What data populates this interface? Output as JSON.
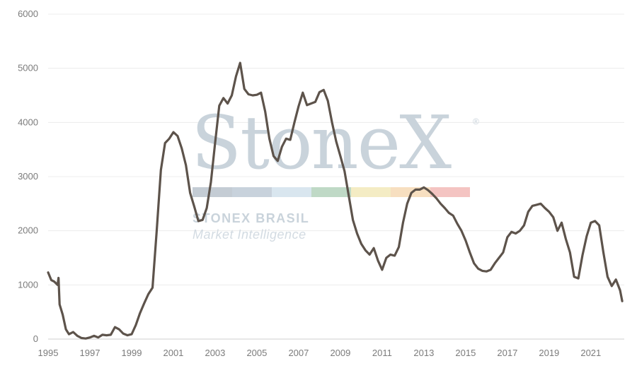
{
  "watermark": {
    "brand": "StoneX",
    "registered": "®",
    "subtitle": "STONEX BRASIL",
    "tagline": "Market Intelligence",
    "stripe_colors": [
      "#c4ccd4",
      "#c8d2dc",
      "#d9e6ef",
      "#bfd9c6",
      "#f4ecc4",
      "#f7dfc0",
      "#f4c4c2"
    ]
  },
  "chart_data": {
    "type": "line",
    "title": "",
    "xlabel": "",
    "ylabel": "",
    "xlim": [
      1995,
      2022.6
    ],
    "ylim": [
      0,
      6000
    ],
    "xticks": [
      "1995",
      "1997",
      "1999",
      "2001",
      "2003",
      "2005",
      "2007",
      "2009",
      "2011",
      "2013",
      "2015",
      "2017",
      "2019",
      "2021"
    ],
    "yticks": [
      "0",
      "1000",
      "2000",
      "3000",
      "4000",
      "5000",
      "6000"
    ],
    "grid": "horizontal",
    "legend": "none",
    "line_color": "#5d534b",
    "series": [
      {
        "x": [
          1995.0,
          1995.15,
          1995.3,
          1995.45,
          1995.5,
          1995.55,
          1995.7,
          1995.85,
          1996.0,
          1996.2,
          1996.4,
          1996.6,
          1996.8,
          1997.0,
          1997.2,
          1997.4,
          1997.6,
          1997.8,
          1998.0,
          1998.2,
          1998.4,
          1998.6,
          1998.8,
          1999.0,
          1999.2,
          1999.4,
          1999.6,
          1999.8,
          2000.0,
          2000.2,
          2000.4,
          2000.6,
          2000.8,
          2001.0,
          2001.2,
          2001.4,
          2001.6,
          2001.8,
          2002.0,
          2002.2,
          2002.4,
          2002.6,
          2002.8,
          2003.0,
          2003.2,
          2003.4,
          2003.6,
          2003.8,
          2004.0,
          2004.2,
          2004.4,
          2004.6,
          2004.8,
          2005.0,
          2005.2,
          2005.4,
          2005.6,
          2005.8,
          2006.0,
          2006.2,
          2006.4,
          2006.6,
          2006.8,
          2007.0,
          2007.2,
          2007.4,
          2007.6,
          2007.8,
          2008.0,
          2008.2,
          2008.4,
          2008.6,
          2008.8,
          2009.0,
          2009.2,
          2009.4,
          2009.6,
          2009.8,
          2010.0,
          2010.2,
          2010.4,
          2010.6,
          2010.8,
          2011.0,
          2011.2,
          2011.4,
          2011.6,
          2011.8,
          2012.0,
          2012.2,
          2012.4,
          2012.6,
          2012.8,
          2013.0,
          2013.2,
          2013.4,
          2013.6,
          2013.8,
          2014.0,
          2014.2,
          2014.4,
          2014.6,
          2014.8,
          2015.0,
          2015.2,
          2015.4,
          2015.6,
          2015.8,
          2016.0,
          2016.2,
          2016.4,
          2016.6,
          2016.8,
          2017.0,
          2017.2,
          2017.4,
          2017.6,
          2017.8,
          2018.0,
          2018.2,
          2018.4,
          2018.6,
          2018.8,
          2019.0,
          2019.2,
          2019.4,
          2019.6,
          2019.8,
          2020.0,
          2020.2,
          2020.4,
          2020.6,
          2020.8,
          2021.0,
          2021.2,
          2021.4,
          2021.6,
          2021.8,
          2022.0,
          2022.2,
          2022.4,
          2022.5
        ],
        "y": [
          1230,
          1090,
          1060,
          1000,
          1130,
          640,
          450,
          180,
          90,
          130,
          60,
          20,
          10,
          30,
          60,
          30,
          80,
          70,
          80,
          220,
          180,
          100,
          70,
          90,
          260,
          480,
          660,
          830,
          950,
          2000,
          3120,
          3620,
          3700,
          3820,
          3750,
          3520,
          3210,
          2700,
          2450,
          2180,
          2200,
          2420,
          2900,
          3620,
          4310,
          4450,
          4350,
          4500,
          4850,
          5100,
          4620,
          4520,
          4500,
          4510,
          4550,
          4200,
          3700,
          3380,
          3290,
          3550,
          3700,
          3680,
          4000,
          4300,
          4550,
          4320,
          4350,
          4380,
          4560,
          4600,
          4400,
          4000,
          3650,
          3380,
          3100,
          2650,
          2200,
          1950,
          1760,
          1640,
          1560,
          1680,
          1450,
          1280,
          1500,
          1560,
          1540,
          1700,
          2150,
          2500,
          2700,
          2760,
          2760,
          2800,
          2750,
          2680,
          2600,
          2500,
          2420,
          2330,
          2280,
          2130,
          2000,
          1820,
          1600,
          1400,
          1300,
          1260,
          1250,
          1280,
          1400,
          1500,
          1600,
          1880,
          1980,
          1950,
          2000,
          2100,
          2350,
          2460,
          2480,
          2500,
          2420,
          2350,
          2250,
          2000,
          2150,
          1850,
          1600,
          1150,
          1120,
          1550,
          1900,
          2150,
          2180,
          2100,
          1600,
          1150,
          980,
          1100,
          900,
          700
        ]
      }
    ]
  }
}
